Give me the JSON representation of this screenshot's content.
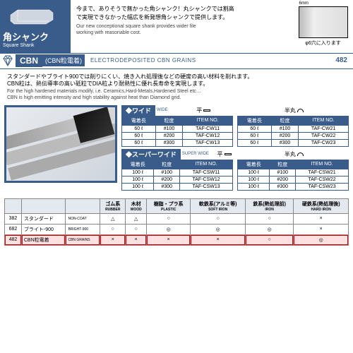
{
  "header": {
    "badge_jp": "角シャンク",
    "badge_en": "Square Shank",
    "jp1": "今まで、ありそうで無かった角シャンク！丸シャンクでは割高",
    "jp2": "で実現できなかった幅広を新発想角シャンクで提供します。",
    "en1": "Our new conceptional square shank provides wider file",
    "en2": "working with reasonable cost.",
    "d6": "6mm",
    "hole_text": "φ6穴に入ります"
  },
  "cbn": {
    "label": "CBN",
    "sub": "(CBN粒電着)",
    "electro": "ELECTRODEPOSITED CBN GRAINS",
    "page": "482"
  },
  "desc": {
    "jp1": "スタンダードやブライト900では削りにくい、焼き入れ処理後などの硬度の高い材料を削れます。",
    "jp2": "CBN粒は、熱伝導率の高い砥粒でDIA粒より耐熱性に優れ長寿命を実現します。",
    "en1": "For the high hardened materials modify, i.e. Ceramics,Hard-Metals,Hardened Steel etc…",
    "en2": "CBN is high emitting intensity and high stability against heat than Diamond grid."
  },
  "sections": {
    "wide": {
      "badge": "◆ワイド",
      "en": "WIDE",
      "flat": "平",
      "half": "半丸"
    },
    "super": {
      "badge": "◆スーパーワイド",
      "en": "SUPER WIDE",
      "flat": "平",
      "half": "半丸"
    }
  },
  "prod_headers": {
    "len": "電着長",
    "grit": "粒度",
    "item": "ITEM NO."
  },
  "wide_flat": [
    {
      "len": "60 ℓ",
      "grit": "#100",
      "item": "TAF-CW11"
    },
    {
      "len": "60 ℓ",
      "grit": "#200",
      "item": "TAF-CW12"
    },
    {
      "len": "60 ℓ",
      "grit": "#300",
      "item": "TAF-CW13"
    }
  ],
  "wide_half": [
    {
      "len": "60 ℓ",
      "grit": "#100",
      "item": "TAF-CW21"
    },
    {
      "len": "60 ℓ",
      "grit": "#200",
      "item": "TAF-CW22"
    },
    {
      "len": "60 ℓ",
      "grit": "#300",
      "item": "TAF-CW23"
    }
  ],
  "super_flat": [
    {
      "len": "100 ℓ",
      "grit": "#100",
      "item": "TAF-CSW11"
    },
    {
      "len": "100 ℓ",
      "grit": "#200",
      "item": "TAF-CSW12"
    },
    {
      "len": "100 ℓ",
      "grit": "#300",
      "item": "TAF-CSW13"
    }
  ],
  "super_half": [
    {
      "len": "100 ℓ",
      "grit": "#100",
      "item": "TAF-CSW21"
    },
    {
      "len": "100 ℓ",
      "grit": "#200",
      "item": "TAF-CSW22"
    },
    {
      "len": "100 ℓ",
      "grit": "#300",
      "item": "TAF-CSW23"
    }
  ],
  "compat": {
    "cols": [
      {
        "jp": "ゴム系",
        "en": "RUBBER"
      },
      {
        "jp": "木材",
        "en": "WOOD"
      },
      {
        "jp": "樹脂・プラ系",
        "en": "PLASTIC"
      },
      {
        "jp": "軟鉄系(アルミ等)",
        "en": "SOFT IRON"
      },
      {
        "jp": "鉄系(熱処理前)",
        "en": "IRON"
      },
      {
        "jp": "硬鉄系(熱処理後)",
        "en": "HARD IRON"
      }
    ],
    "rows": [
      {
        "num": "382",
        "jp": "スタンダード",
        "en": "NON-COAT",
        "v": [
          "tri",
          "tri",
          "circle",
          "circle",
          "circle",
          "cross"
        ]
      },
      {
        "num": "682",
        "jp": "ブライト-900",
        "en": "BRIGHT-900",
        "v": [
          "circle",
          "circle",
          "dcircle",
          "dcircle",
          "dcircle",
          "cross"
        ]
      },
      {
        "num": "482",
        "jp": "CBN粒電着",
        "en": "CBN GRAINS",
        "v": [
          "cross",
          "cross",
          "cross",
          "cross",
          "circle",
          "dcircle"
        ],
        "hl": true
      }
    ]
  }
}
